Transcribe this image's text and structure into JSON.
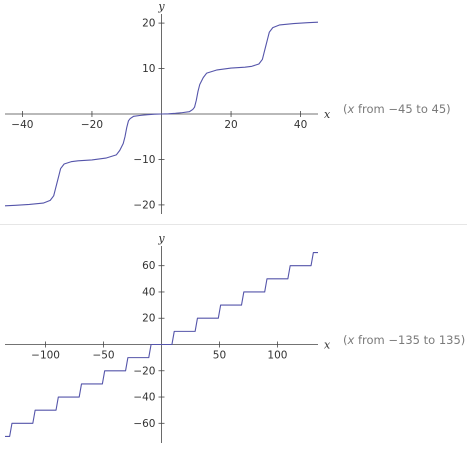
{
  "charts": [
    {
      "range_note": {
        "prefix": "(",
        "var": "x",
        "text": " from −45 to 45)"
      },
      "x_name": "x",
      "y_name": "y",
      "x_ticks": [
        "−40",
        "−20",
        "20",
        "40"
      ],
      "y_ticks": [
        "20",
        "10",
        "−10",
        "−20"
      ]
    },
    {
      "range_note": {
        "prefix": "(",
        "var": "x",
        "text": " from −135 to 135)"
      },
      "x_name": "x",
      "y_name": "y",
      "x_ticks": [
        "−100",
        "−50",
        "50",
        "100"
      ],
      "y_ticks": [
        "60",
        "40",
        "20",
        "−20",
        "−40",
        "−60"
      ]
    }
  ],
  "chart_data": [
    {
      "type": "line",
      "title": "",
      "xlabel": "x",
      "ylabel": "y",
      "xlim": [
        -45,
        45
      ],
      "ylim": [
        -22,
        22
      ],
      "x_tick_values": [
        -40,
        -20,
        20,
        40
      ],
      "y_tick_values": [
        20,
        10,
        -10,
        -20
      ],
      "grid": false,
      "series_color": "#5555aa",
      "series": [
        {
          "name": "",
          "x": [
            -45,
            -42,
            -38,
            -34,
            -32,
            -31,
            -30.5,
            -30,
            -29.5,
            -29,
            -28,
            -26,
            -24,
            -20,
            -16,
            -13,
            -12,
            -11,
            -10.5,
            -10,
            -9.5,
            -9,
            -8,
            -6,
            -4,
            -2,
            0,
            2,
            4,
            6,
            8,
            9,
            9.5,
            10,
            10.5,
            11,
            12,
            13,
            16,
            20,
            24,
            26,
            28,
            29,
            29.5,
            30,
            30.5,
            31,
            32,
            34,
            38,
            42,
            45
          ],
          "y": [
            -20.2,
            -20.1,
            -19.9,
            -19.6,
            -19.0,
            -18.0,
            -16.5,
            -15.0,
            -13.5,
            -12.0,
            -11.0,
            -10.5,
            -10.3,
            -10.1,
            -9.7,
            -9.0,
            -8.0,
            -6.5,
            -5.0,
            -3.0,
            -1.5,
            -1.0,
            -0.5,
            -0.3,
            -0.15,
            -0.05,
            0,
            0.05,
            0.15,
            0.3,
            0.5,
            1.0,
            1.5,
            3.0,
            5.0,
            6.5,
            8.0,
            9.0,
            9.7,
            10.1,
            10.3,
            10.5,
            11.0,
            12.0,
            13.5,
            15.0,
            16.5,
            18.0,
            19.0,
            19.6,
            19.9,
            20.1,
            20.2
          ]
        }
      ]
    },
    {
      "type": "line",
      "title": "",
      "xlabel": "x",
      "ylabel": "y",
      "xlim": [
        -135,
        135
      ],
      "ylim": [
        -75,
        75
      ],
      "x_tick_values": [
        -100,
        -50,
        50,
        100
      ],
      "y_tick_values": [
        60,
        40,
        20,
        -20,
        -40,
        -60
      ],
      "grid": false,
      "series_color": "#5555aa",
      "series": [
        {
          "name": "",
          "x": [
            -135,
            -131,
            -129,
            -125,
            -111,
            -109,
            -105,
            -91,
            -89,
            -85,
            -71,
            -69,
            -65,
            -51,
            -49,
            -45,
            -31,
            -29,
            -25,
            -11,
            -9,
            9,
            11,
            25,
            29,
            31,
            45,
            49,
            51,
            65,
            69,
            71,
            85,
            89,
            91,
            105,
            109,
            111,
            125,
            129,
            131,
            135
          ],
          "y": [
            -70,
            -70,
            -60,
            -60,
            -60,
            -50,
            -50,
            -50,
            -40,
            -40,
            -40,
            -30,
            -30,
            -30,
            -20,
            -20,
            -20,
            -10,
            -10,
            -10,
            0,
            0,
            10,
            10,
            10,
            20,
            20,
            20,
            30,
            30,
            30,
            40,
            40,
            40,
            50,
            50,
            50,
            60,
            60,
            60,
            70,
            70
          ]
        }
      ]
    }
  ]
}
